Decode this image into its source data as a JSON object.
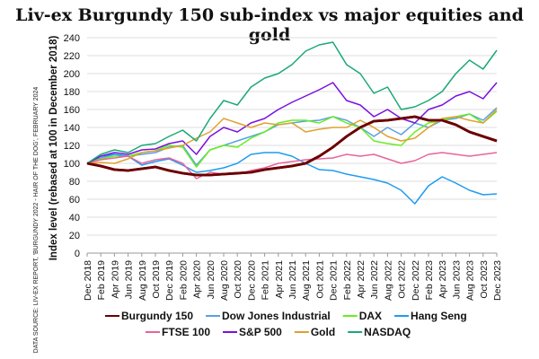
{
  "chart_data": {
    "type": "line",
    "title": "Liv-ex Burgundy 150 sub-index vs major equities and gold",
    "ylabel": "Index level (rebased at 100 in December 2018)",
    "source": "DATA SOURCE: LIV-EX REPORT, 'BURGUNDY 2022 - HAIR OF THE DOG', FEBRUARY 2024",
    "ylim": [
      0,
      240
    ],
    "yticks": [
      0,
      20,
      40,
      60,
      80,
      100,
      120,
      140,
      160,
      180,
      200,
      220,
      240
    ],
    "grid": true,
    "legend": "bottom",
    "x": [
      "Dec 2018",
      "Feb 2019",
      "Apr 2019",
      "Jun 2019",
      "Aug 2019",
      "Oct 2019",
      "Dec 2019",
      "Feb 2020",
      "Apr 2020",
      "Jun 2020",
      "Aug 2020",
      "Oct 2020",
      "Dec 2020",
      "Feb 2021",
      "Apr 2021",
      "Jun 2021",
      "Aug 2021",
      "Oct 2021",
      "Dec 2021",
      "Feb 2022",
      "Apr 2022",
      "Jun 2022",
      "Aug 2022",
      "Oct 2022",
      "Dec 2022",
      "Feb 2023",
      "Apr 2023",
      "Jun 2023",
      "Aug 2023",
      "Oct 2023",
      "Dec 2023"
    ],
    "series": [
      {
        "name": "Burgundy 150",
        "color": "#6b0000",
        "values": [
          100,
          97,
          93,
          92,
          94,
          96,
          92,
          89,
          87,
          87,
          88,
          89,
          90,
          93,
          95,
          97,
          100,
          108,
          118,
          130,
          140,
          147,
          148,
          150,
          152,
          148,
          148,
          143,
          135,
          130,
          125
        ]
      },
      {
        "name": "Dow Jones Industrial",
        "color": "#5aa0e6",
        "values": [
          100,
          106,
          110,
          108,
          110,
          112,
          118,
          120,
          98,
          115,
          120,
          125,
          130,
          135,
          143,
          145,
          147,
          148,
          152,
          148,
          140,
          130,
          140,
          132,
          145,
          140,
          148,
          150,
          155,
          148,
          162
        ]
      },
      {
        "name": "DAX",
        "color": "#66ee22",
        "values": [
          100,
          105,
          108,
          108,
          112,
          114,
          120,
          118,
          96,
          115,
          120,
          118,
          128,
          135,
          145,
          148,
          148,
          145,
          152,
          145,
          140,
          125,
          122,
          120,
          135,
          145,
          148,
          152,
          155,
          145,
          158
        ]
      },
      {
        "name": "Hang Seng",
        "color": "#1e9cf0",
        "values": [
          100,
          108,
          110,
          108,
          98,
          102,
          105,
          98,
          90,
          92,
          95,
          100,
          110,
          112,
          112,
          108,
          100,
          93,
          92,
          88,
          85,
          82,
          78,
          70,
          55,
          75,
          85,
          78,
          70,
          65,
          66
        ]
      },
      {
        "name": "FTSE 100",
        "color": "#e8649a",
        "values": [
          100,
          104,
          106,
          108,
          100,
          104,
          106,
          100,
          83,
          90,
          88,
          88,
          92,
          95,
          100,
          102,
          104,
          105,
          106,
          110,
          108,
          110,
          105,
          100,
          103,
          110,
          112,
          110,
          108,
          110,
          112
        ]
      },
      {
        "name": "S&P 500",
        "color": "#7a10e0",
        "values": [
          100,
          108,
          112,
          110,
          115,
          116,
          122,
          125,
          110,
          130,
          140,
          135,
          145,
          150,
          160,
          168,
          175,
          182,
          190,
          170,
          165,
          152,
          160,
          150,
          145,
          160,
          165,
          175,
          180,
          172,
          190
        ]
      },
      {
        "name": "Gold",
        "color": "#e0a030",
        "values": [
          100,
          101,
          100,
          105,
          112,
          114,
          117,
          120,
          128,
          135,
          150,
          145,
          140,
          145,
          143,
          145,
          135,
          138,
          140,
          140,
          148,
          140,
          130,
          125,
          128,
          140,
          150,
          152,
          148,
          145,
          160
        ]
      },
      {
        "name": "NASDAQ",
        "color": "#1aa878",
        "values": [
          100,
          110,
          115,
          112,
          120,
          122,
          130,
          137,
          125,
          150,
          170,
          165,
          185,
          195,
          200,
          210,
          225,
          232,
          235,
          210,
          200,
          178,
          185,
          160,
          163,
          170,
          180,
          200,
          215,
          205,
          226
        ]
      }
    ]
  }
}
